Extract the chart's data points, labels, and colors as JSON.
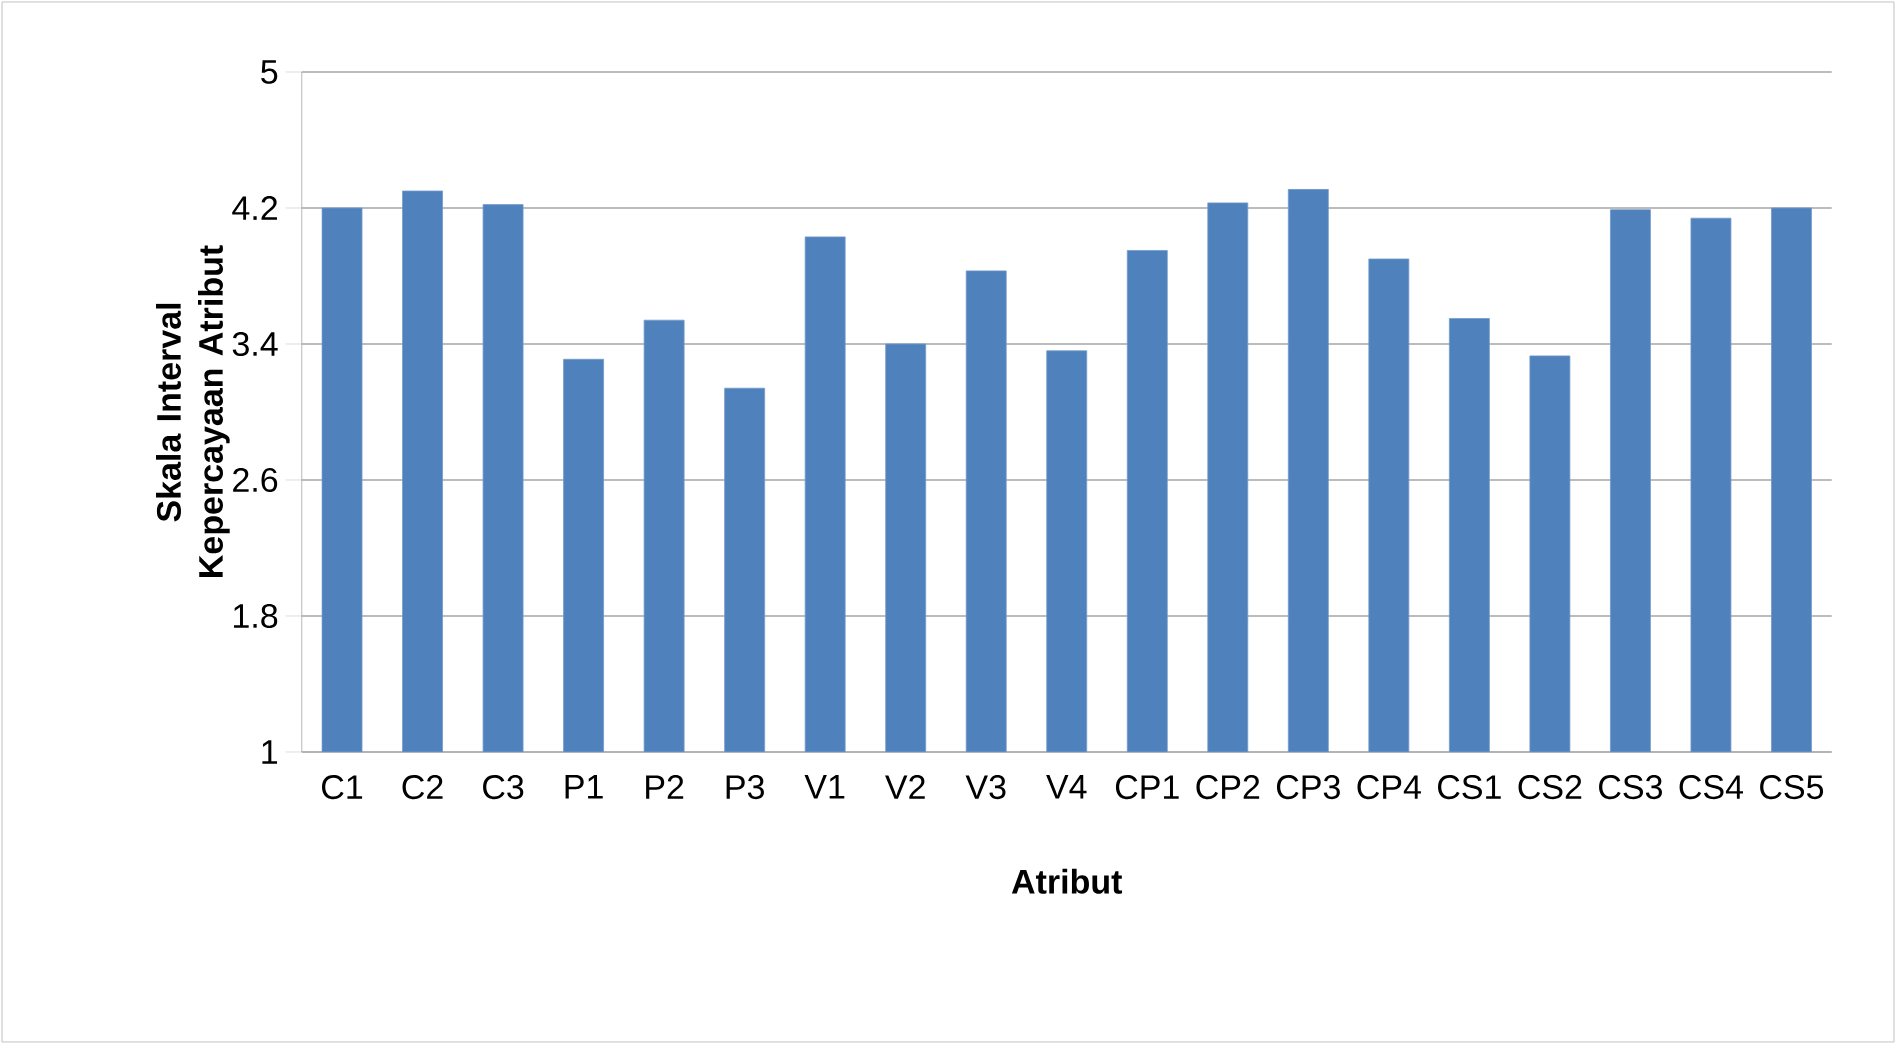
{
  "chart_data": {
    "type": "bar",
    "xlabel": "Atribut",
    "ylabel": "Skala Interval Kepercayaan Atribut",
    "categories": [
      "C1",
      "C2",
      "C3",
      "P1",
      "P2",
      "P3",
      "V1",
      "V2",
      "V3",
      "V4",
      "CP1",
      "CP2",
      "CP3",
      "CP4",
      "CS1",
      "CS2",
      "CS3",
      "CS4",
      "CS5"
    ],
    "values": [
      4.2,
      4.3,
      4.22,
      3.31,
      3.54,
      3.14,
      4.03,
      3.4,
      3.83,
      3.36,
      3.95,
      4.23,
      4.31,
      3.9,
      3.55,
      3.33,
      4.19,
      4.14,
      4.2
    ],
    "color": "#4f81bd",
    "ylim": [
      1,
      5
    ],
    "yticks": [
      1,
      1.8,
      2.6,
      3.4,
      4.2,
      5
    ],
    "grid": "y"
  }
}
